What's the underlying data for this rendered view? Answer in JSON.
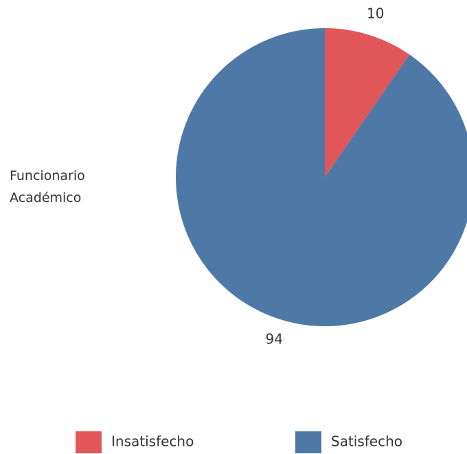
{
  "chart_data": {
    "type": "pie",
    "row_label": "Funcionario Académico",
    "categories": [
      "Insatisfecho",
      "Satisfecho"
    ],
    "values": [
      10,
      94
    ],
    "colors": [
      "#e15759",
      "#4e79a7"
    ],
    "legend": "bottom"
  }
}
